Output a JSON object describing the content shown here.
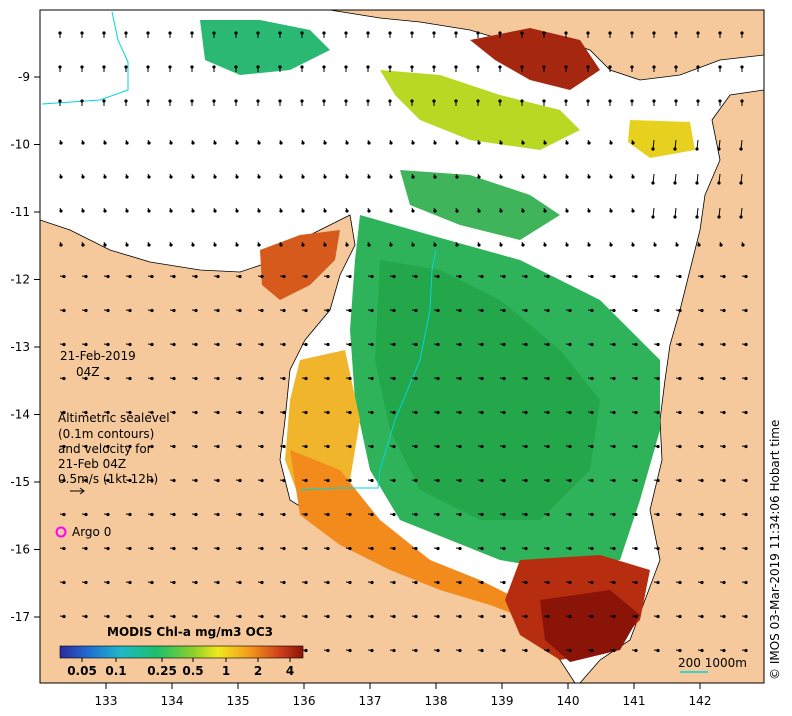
{
  "map": {
    "date_label": "21-Feb-2019",
    "time_label": "04Z",
    "legend_lines": [
      "Altimetric sealevel",
      "(0.1m contours)",
      "and velocity for",
      "21-Feb 04Z",
      "0.5m/s (1kt 12h)"
    ],
    "argo_label": "Argo 0",
    "colorbar_title": "MODIS Chl-a mg/m3 OC3",
    "colorbar_ticks": [
      "0.05",
      "0.1",
      "0.25",
      "0.5",
      "1",
      "2",
      "4"
    ],
    "scale_label": "200  1000m",
    "credit": "© IMOS 03-Mar-2019 11:34:06 Hobart time",
    "x_ticks": [
      "133",
      "134",
      "135",
      "136",
      "137",
      "138",
      "139",
      "140",
      "141",
      "142"
    ],
    "y_ticks": [
      "-9",
      "-10",
      "-11",
      "-12",
      "-13",
      "-14",
      "-15",
      "-16",
      "-17"
    ],
    "colors": {
      "land": "#f5c99b",
      "sea": "#ffffff",
      "argo": "#ff00ff",
      "isobath": "#00d6e0",
      "chl_low": "#2d2d9a",
      "chl_mid": "#22b04c",
      "chl_high": "#8a1a06"
    }
  }
}
